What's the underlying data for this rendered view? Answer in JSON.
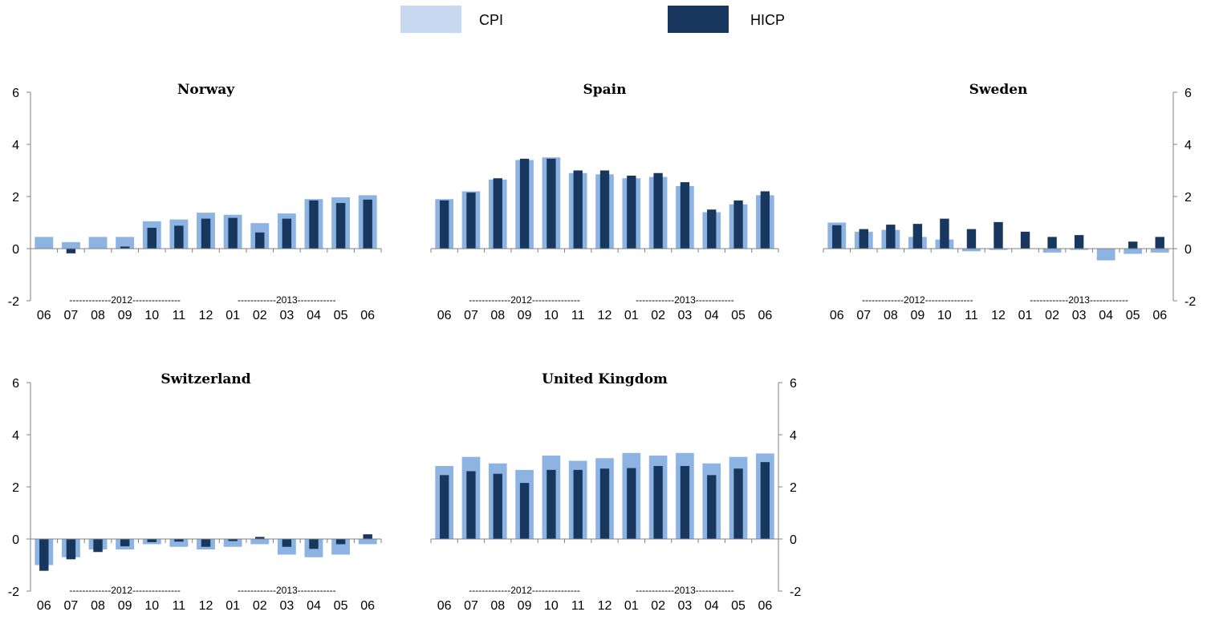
{
  "legend": {
    "items": [
      {
        "label": "CPI",
        "color": "#c6d9f1"
      },
      {
        "label": "HICP",
        "color": "#17375e"
      }
    ]
  },
  "colors": {
    "cpi_bar": "#8db3e2",
    "hicp_bar": "#17375e",
    "axis": "#808080"
  },
  "chart_data": [
    {
      "type": "bar",
      "title": "Norway",
      "categories": [
        "06",
        "07",
        "08",
        "09",
        "10",
        "11",
        "12",
        "01",
        "02",
        "03",
        "04",
        "05",
        "06"
      ],
      "year_labels": [
        "-------------2012---------------",
        "------------2013------------"
      ],
      "ylim": [
        -2,
        6
      ],
      "yticks": [
        "-2",
        "0",
        "2",
        "4",
        "6"
      ],
      "y_axis_side": "left",
      "series": [
        {
          "name": "CPI",
          "values": [
            0.45,
            0.25,
            0.45,
            0.45,
            1.05,
            1.12,
            1.38,
            1.3,
            0.98,
            1.35,
            1.9,
            1.97,
            2.05
          ]
        },
        {
          "name": "HICP",
          "values": [
            0.0,
            -0.18,
            0.0,
            0.08,
            0.8,
            0.88,
            1.15,
            1.18,
            0.62,
            1.15,
            1.85,
            1.75,
            1.88
          ]
        }
      ]
    },
    {
      "type": "bar",
      "title": "Spain",
      "categories": [
        "06",
        "07",
        "08",
        "09",
        "10",
        "11",
        "12",
        "01",
        "02",
        "03",
        "04",
        "05",
        "06"
      ],
      "year_labels": [
        "-------------2012---------------",
        "------------2013------------"
      ],
      "ylim": [
        -2,
        6
      ],
      "yticks": [],
      "y_axis_side": "none",
      "series": [
        {
          "name": "CPI",
          "values": [
            1.9,
            2.2,
            2.65,
            3.4,
            3.5,
            2.9,
            2.85,
            2.7,
            2.75,
            2.4,
            1.4,
            1.7,
            2.05
          ]
        },
        {
          "name": "HICP",
          "values": [
            1.85,
            2.15,
            2.7,
            3.45,
            3.45,
            3.0,
            3.0,
            2.8,
            2.9,
            2.55,
            1.5,
            1.85,
            2.2
          ]
        }
      ]
    },
    {
      "type": "bar",
      "title": "Sweden",
      "categories": [
        "06",
        "07",
        "08",
        "09",
        "10",
        "11",
        "12",
        "01",
        "02",
        "03",
        "04",
        "05",
        "06"
      ],
      "year_labels": [
        "-------------2012---------------",
        "------------2013------------"
      ],
      "ylim": [
        -2,
        6
      ],
      "yticks": [
        "-2",
        "0",
        "2",
        "4",
        "6"
      ],
      "y_axis_side": "right",
      "series": [
        {
          "name": "CPI",
          "values": [
            1.0,
            0.65,
            0.72,
            0.45,
            0.35,
            -0.1,
            -0.05,
            0.0,
            -0.15,
            -0.05,
            -0.45,
            -0.2,
            -0.15
          ]
        },
        {
          "name": "HICP",
          "values": [
            0.9,
            0.75,
            0.92,
            0.95,
            1.15,
            0.75,
            1.02,
            0.65,
            0.45,
            0.52,
            0.0,
            0.27,
            0.45
          ]
        }
      ]
    },
    {
      "type": "bar",
      "title": "Switzerland",
      "categories": [
        "06",
        "07",
        "08",
        "09",
        "10",
        "11",
        "12",
        "01",
        "02",
        "03",
        "04",
        "05",
        "06"
      ],
      "year_labels": [
        "-------------2012---------------",
        "------------2013------------"
      ],
      "ylim": [
        -2,
        6
      ],
      "yticks": [
        "-2",
        "0",
        "2",
        "4",
        "6"
      ],
      "y_axis_side": "left",
      "series": [
        {
          "name": "CPI",
          "values": [
            -1.0,
            -0.7,
            -0.4,
            -0.4,
            -0.2,
            -0.3,
            -0.4,
            -0.3,
            -0.2,
            -0.6,
            -0.7,
            -0.6,
            -0.2
          ]
        },
        {
          "name": "HICP",
          "values": [
            -1.22,
            -0.78,
            -0.5,
            -0.28,
            -0.12,
            -0.1,
            -0.3,
            -0.08,
            0.08,
            -0.3,
            -0.38,
            -0.2,
            0.18
          ]
        }
      ]
    },
    {
      "type": "bar",
      "title": "United Kingdom",
      "categories": [
        "06",
        "07",
        "08",
        "09",
        "10",
        "11",
        "12",
        "01",
        "02",
        "03",
        "04",
        "05",
        "06"
      ],
      "year_labels": [
        "-------------2012---------------",
        "------------2013------------"
      ],
      "ylim": [
        -2,
        6
      ],
      "yticks": [
        "-2",
        "0",
        "2",
        "4",
        "6"
      ],
      "y_axis_side": "right",
      "series": [
        {
          "name": "CPI",
          "values": [
            2.8,
            3.15,
            2.9,
            2.65,
            3.2,
            3.0,
            3.1,
            3.3,
            3.2,
            3.3,
            2.9,
            3.15,
            3.28
          ]
        },
        {
          "name": "HICP",
          "values": [
            2.45,
            2.6,
            2.5,
            2.15,
            2.65,
            2.65,
            2.7,
            2.72,
            2.8,
            2.8,
            2.45,
            2.7,
            2.95
          ]
        }
      ]
    }
  ]
}
